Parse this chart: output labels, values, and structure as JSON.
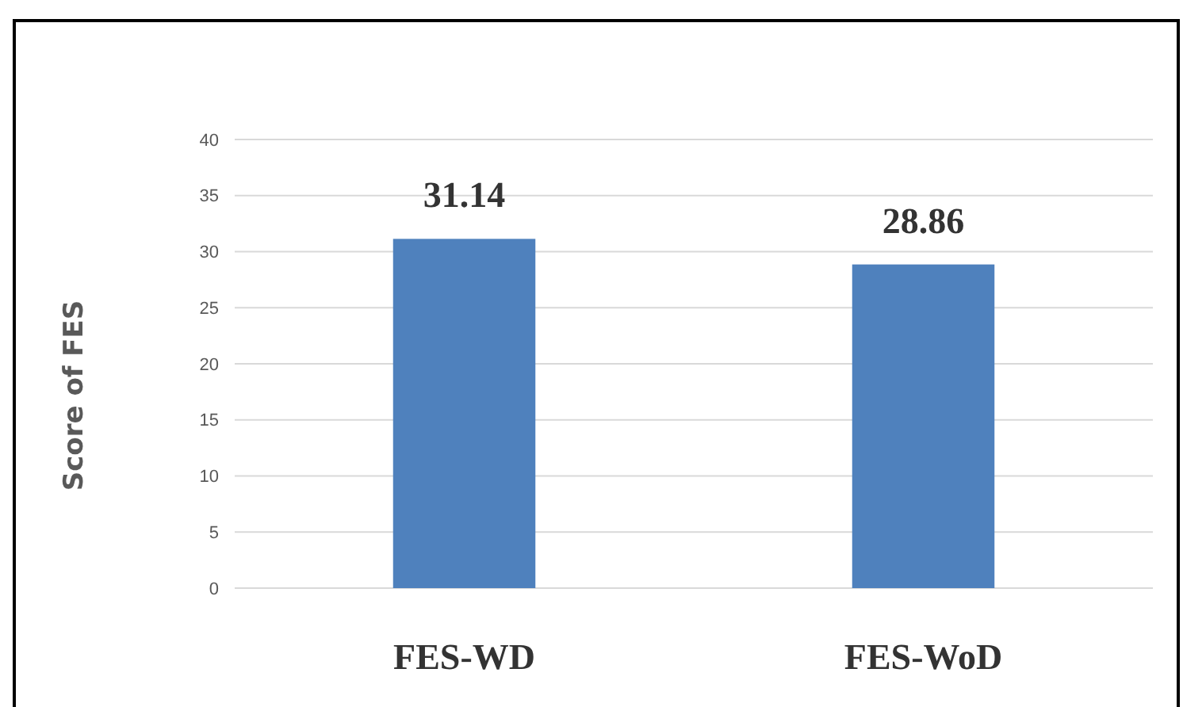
{
  "chart_data": {
    "type": "bar",
    "ylabel": "Score of FES",
    "categories": [
      "FES-WD",
      "FES-WoD"
    ],
    "values": [
      31.14,
      28.86
    ],
    "color": "#4f81bd",
    "ylim": [
      0,
      40
    ],
    "yticks": [
      0,
      5,
      10,
      15,
      20,
      25,
      30,
      35,
      40
    ],
    "grid": "y",
    "data_labels": true
  }
}
